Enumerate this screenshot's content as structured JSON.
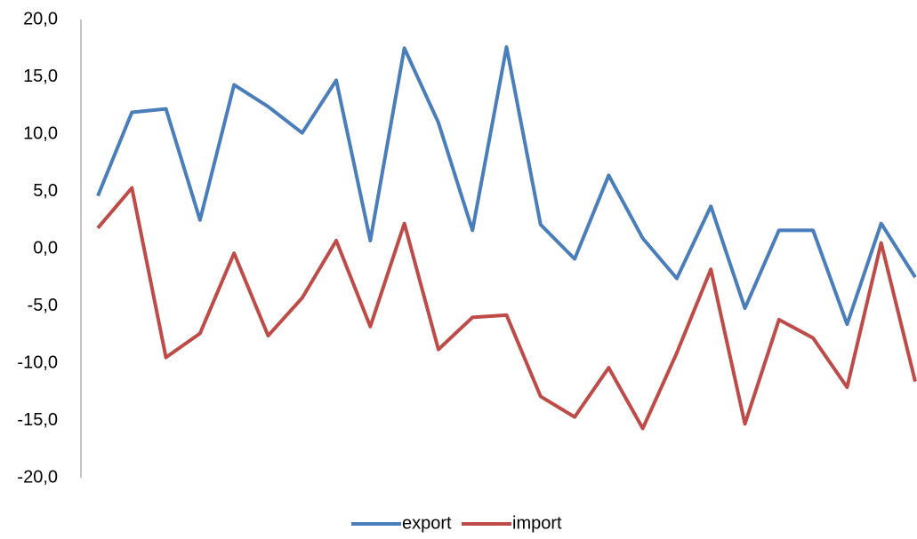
{
  "chart_data": {
    "type": "line",
    "categories": [
      null,
      null,
      null,
      null,
      null,
      null,
      null,
      null,
      null,
      null,
      null,
      null,
      null,
      null,
      null,
      null,
      null,
      null,
      null,
      null,
      null,
      null,
      null,
      null,
      null
    ],
    "series": [
      {
        "name": "export",
        "color": "#4a7ebb",
        "values": [
          4.6,
          11.9,
          12.2,
          2.5,
          14.3,
          12.4,
          10.1,
          14.7,
          0.7,
          17.5,
          11.0,
          1.6,
          17.6,
          2.1,
          -0.9,
          6.4,
          0.9,
          -2.6,
          3.7,
          -5.2,
          1.6,
          1.6,
          -6.6,
          2.2,
          -2.5
        ]
      },
      {
        "name": "import",
        "color": "#be4b48",
        "values": [
          1.8,
          5.3,
          -9.5,
          -7.4,
          -0.4,
          -7.6,
          -4.3,
          0.7,
          -6.8,
          2.2,
          -8.8,
          -6.0,
          -5.8,
          -12.9,
          -14.7,
          -10.4,
          -15.7,
          -9.1,
          -1.8,
          -15.3,
          -6.2,
          -7.8,
          -12.1,
          0.5,
          -11.6
        ]
      }
    ],
    "ylim": [
      -20,
      20
    ],
    "yticks": [
      {
        "value": -20,
        "label": "-20,0"
      },
      {
        "value": -15,
        "label": "-15,0"
      },
      {
        "value": -10,
        "label": "-10,0"
      },
      {
        "value": -5,
        "label": "-5,0"
      },
      {
        "value": 0,
        "label": "0,0"
      },
      {
        "value": 5,
        "label": "5,0"
      },
      {
        "value": 10,
        "label": "10,0"
      },
      {
        "value": 15,
        "label": "15,0"
      },
      {
        "value": 20,
        "label": "20,0"
      }
    ],
    "grid": false
  }
}
